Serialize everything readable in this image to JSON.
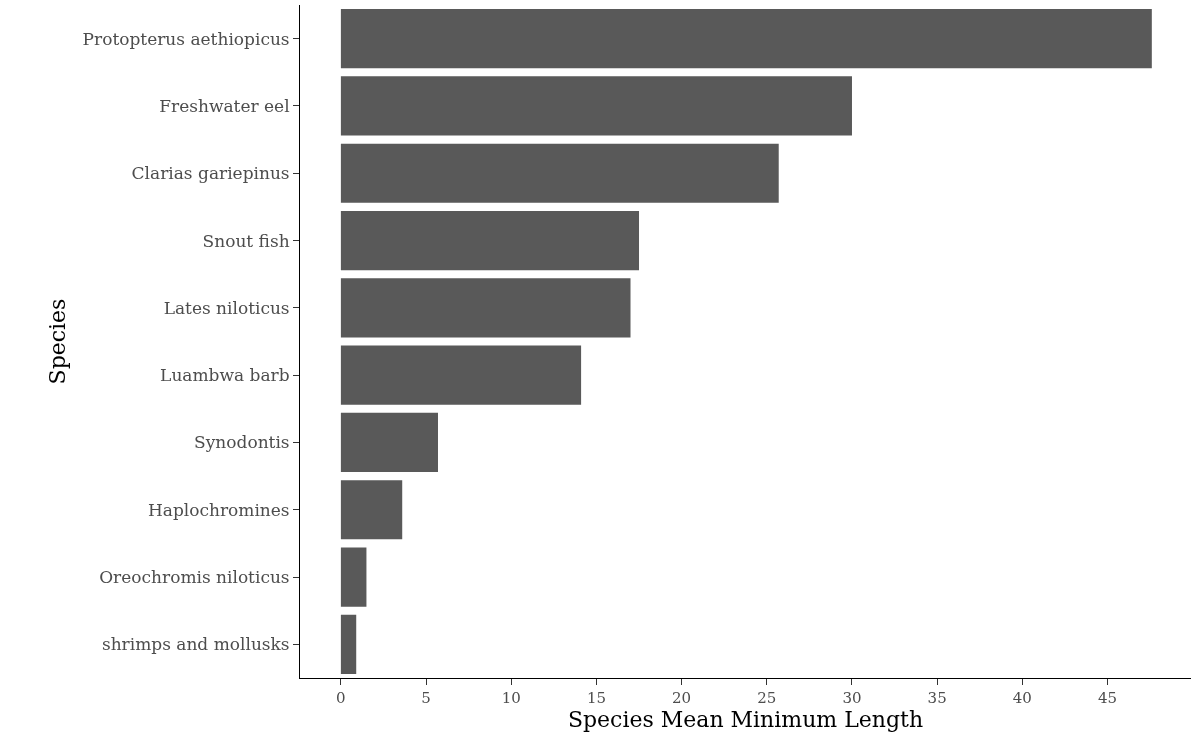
{
  "chart_data": {
    "type": "bar",
    "orientation": "horizontal",
    "xlabel": "Species Mean Minimum Length",
    "ylabel": "Species",
    "categories": [
      "Protopterus aethiopicus",
      "Freshwater eel",
      "Clarias gariepinus",
      "Snout fish",
      "Lates niloticus",
      "Luambwa barb",
      "Synodontis",
      "Haplochromines",
      "Oreochromis niloticus",
      "shrimps and mollusks"
    ],
    "values": [
      47.6,
      30.0,
      25.7,
      17.5,
      17.0,
      14.1,
      5.7,
      3.6,
      1.5,
      0.9
    ],
    "color": "#595959",
    "xlim": [
      -2.4,
      49.9
    ],
    "xticks": [
      0,
      5,
      10,
      15,
      20,
      25,
      30,
      35,
      40,
      45
    ],
    "grid": false
  }
}
